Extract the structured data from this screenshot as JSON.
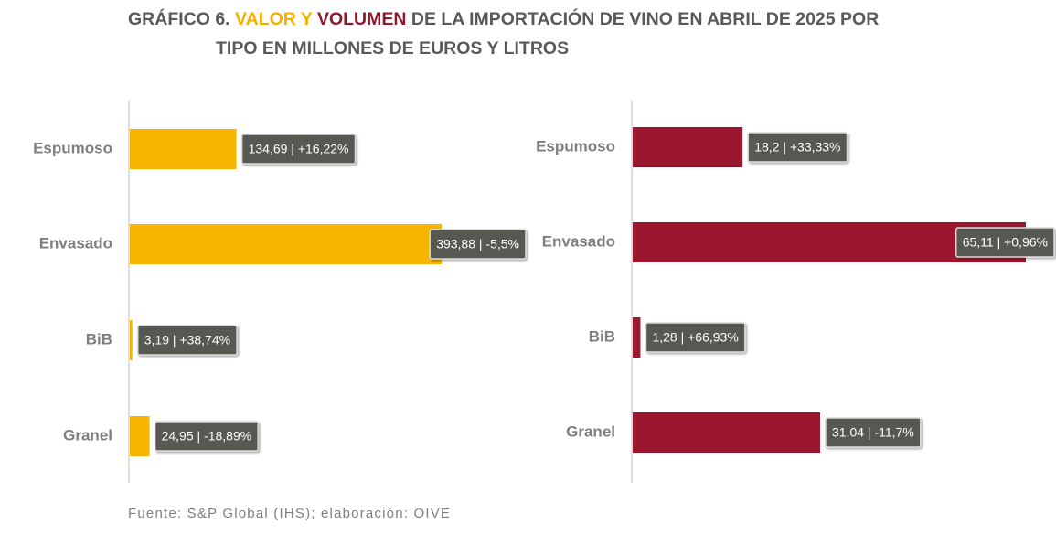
{
  "title_lines": [
    [
      {
        "text": "GRÁFICO 6. ",
        "color": "#595959"
      },
      {
        "text": "VALOR Y",
        "color": "#f2b000"
      },
      {
        "text": " VOLUMEN",
        "color": "#8c1a2e"
      },
      {
        "text": " DE LA IMPORTACIÓN DE VINO EN ABRIL DE 2025 POR",
        "color": "#595959"
      }
    ],
    [
      {
        "text": "TIPO EN MILLONES DE EUROS Y LITROS",
        "color": "#595959"
      }
    ]
  ],
  "source": "Fuente: S&P Global (IHS); elaboración: OIVE",
  "chart_data": [
    {
      "type": "bar",
      "orientation": "horizontal",
      "color": "#f7b500",
      "categories": [
        "Espumoso",
        "Envasado",
        "BiB",
        "Granel"
      ],
      "values": [
        134.69,
        393.88,
        3.19,
        24.95
      ],
      "value_labels": [
        "134,69 | +16,22%",
        "393,88 | -5,5%",
        "3,19 | +38,74%",
        "24,95 | -18,89%"
      ]
    },
    {
      "type": "bar",
      "orientation": "horizontal",
      "color": "#9b1730",
      "categories": [
        "Espumoso",
        "Envasado",
        "BiB",
        "Granel"
      ],
      "values": [
        18.2,
        65.11,
        1.28,
        31.04
      ],
      "value_labels": [
        "18,2 | +33,33%",
        "65,11 | +0,96%",
        "1,28 | +66,93%",
        "31,04 | -11,7%"
      ]
    }
  ]
}
